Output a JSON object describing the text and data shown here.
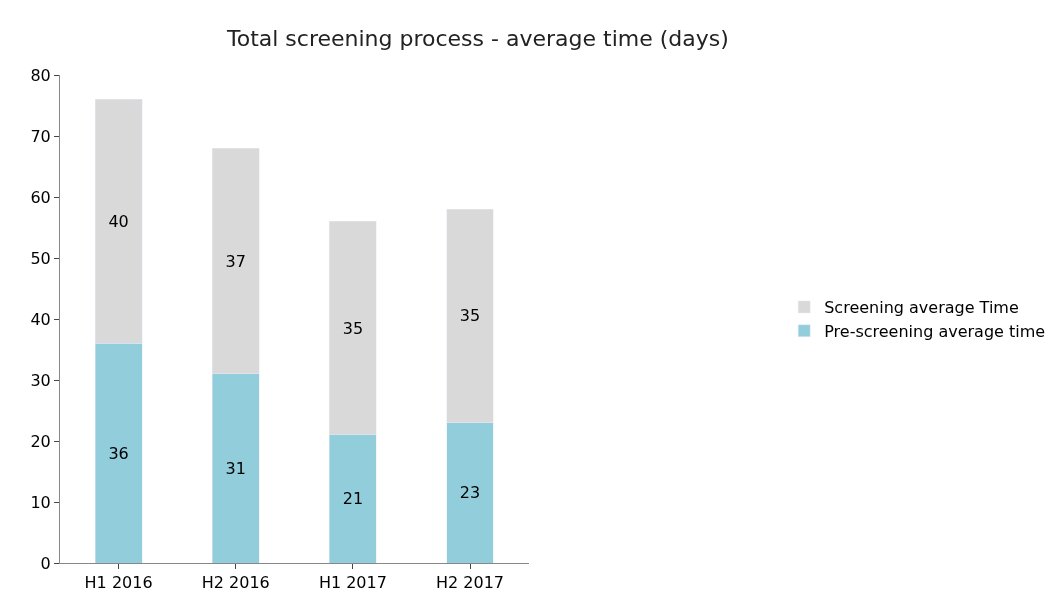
{
  "chart_data": {
    "type": "bar",
    "title": "Total screening process - average time (days)",
    "categories": [
      "H1 2016",
      "H2 2016",
      "H1 2017",
      "H2 2017"
    ],
    "series": [
      {
        "name": "Pre-screening average time",
        "color": "#92cddc",
        "values": [
          36,
          31,
          21,
          23
        ]
      },
      {
        "name": "Screening average Time",
        "color": "#d9d9d9",
        "values": [
          40,
          37,
          35,
          35
        ]
      }
    ],
    "stacked": true,
    "data_labels": true,
    "ylim": [
      0,
      80
    ],
    "yticks": [
      0,
      10,
      20,
      30,
      40,
      50,
      60,
      70,
      80
    ],
    "legend": "right"
  }
}
